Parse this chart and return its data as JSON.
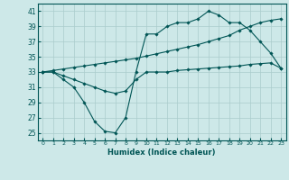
{
  "xlabel": "Humidex (Indice chaleur)",
  "x_ticks": [
    0,
    1,
    2,
    3,
    4,
    5,
    6,
    7,
    8,
    9,
    10,
    11,
    12,
    13,
    14,
    15,
    16,
    17,
    18,
    19,
    20,
    21,
    22,
    23
  ],
  "xlim": [
    -0.5,
    23.5
  ],
  "ylim": [
    24,
    42
  ],
  "y_ticks": [
    25,
    27,
    29,
    31,
    33,
    35,
    37,
    39,
    41
  ],
  "background_color": "#cde8e8",
  "grid_color": "#aacccc",
  "line_color": "#005555",
  "series1_y": [
    33,
    33,
    32,
    31,
    29,
    26.5,
    25.2,
    25,
    27,
    33,
    38,
    38,
    39,
    39.5,
    39.5,
    40,
    41,
    40.5,
    39.5,
    39.5,
    38.5,
    37,
    35.5,
    33.5
  ],
  "series2_y": [
    33,
    33,
    32.5,
    32,
    31.5,
    31,
    30.5,
    30.2,
    30.5,
    32,
    33,
    33,
    33,
    33.2,
    33.3,
    33.4,
    33.5,
    33.6,
    33.7,
    33.8,
    34,
    34.1,
    34.2,
    33.5
  ],
  "series3_y": [
    33,
    33.2,
    33.4,
    33.6,
    33.8,
    34.0,
    34.2,
    34.4,
    34.6,
    34.8,
    35.1,
    35.4,
    35.7,
    36.0,
    36.3,
    36.6,
    37.0,
    37.4,
    37.8,
    38.5,
    39.0,
    39.5,
    39.8,
    40.0
  ]
}
